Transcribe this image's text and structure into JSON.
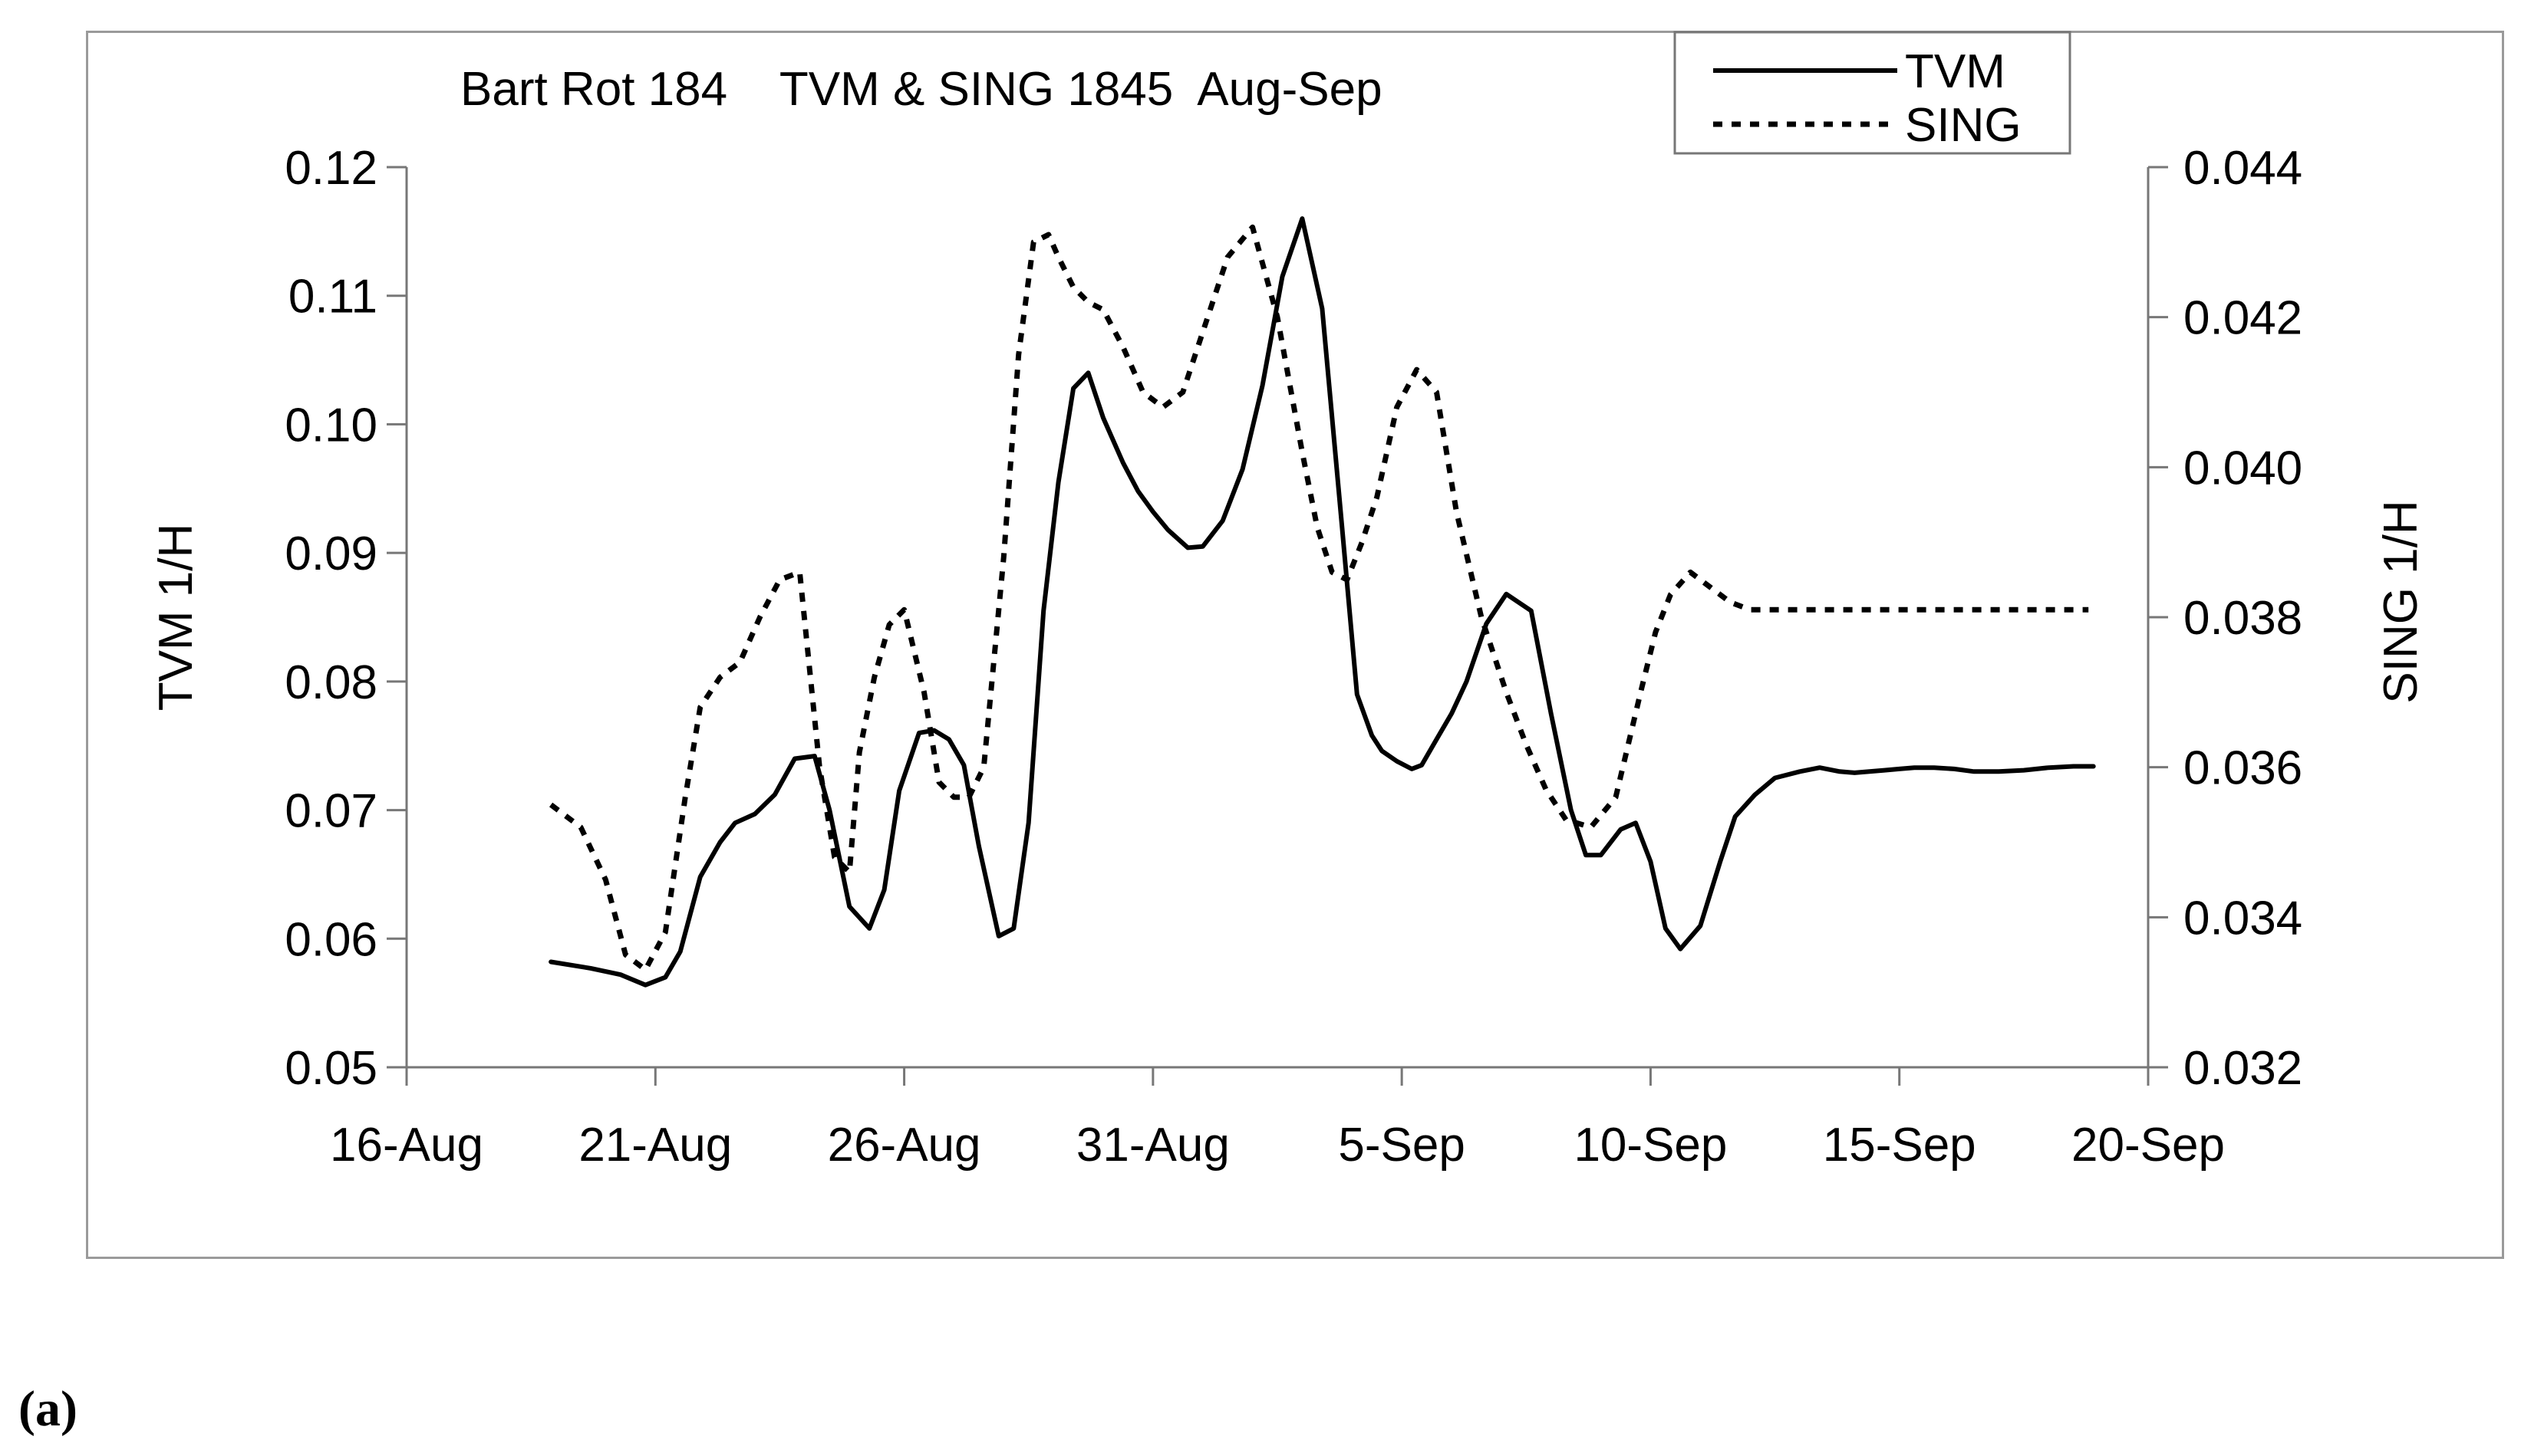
{
  "chart_data": {
    "type": "line",
    "title": "Bart Rot 184    TVM & SING 1845  Aug-Sep",
    "xlabel": "",
    "ylabel": "TVM  1/H",
    "y2label": "SING 1/H",
    "x_ticks": [
      "16-Aug",
      "21-Aug",
      "26-Aug",
      "31-Aug",
      "5-Sep",
      "10-Sep",
      "15-Sep",
      "20-Sep"
    ],
    "x_range_days": [
      0,
      35
    ],
    "x_unit": "days since 16-Aug",
    "ylim": [
      0.05,
      0.12
    ],
    "y_ticks": [
      "0.05",
      "0.06",
      "0.07",
      "0.08",
      "0.09",
      "0.10",
      "0.11",
      "0.12"
    ],
    "y2lim": [
      0.032,
      0.044
    ],
    "y2_ticks": [
      "0.032",
      "0.034",
      "0.036",
      "0.038",
      "0.040",
      "0.042",
      "0.044"
    ],
    "legend_position": "top-right",
    "grid": false,
    "series": [
      {
        "name": "TVM",
        "axis": "left",
        "style": "solid",
        "x": [
          2.9,
          3.7,
          4.3,
          4.8,
          5.2,
          5.5,
          5.9,
          6.3,
          6.6,
          7.0,
          7.4,
          7.8,
          8.2,
          8.5,
          8.9,
          9.3,
          9.6,
          9.9,
          10.3,
          10.6,
          10.9,
          11.2,
          11.5,
          11.9,
          12.2,
          12.5,
          12.8,
          13.1,
          13.4,
          13.7,
          14.0,
          14.4,
          14.7,
          15.0,
          15.3,
          15.7,
          16.0,
          16.4,
          16.8,
          17.2,
          17.6,
          18.0,
          18.4,
          18.8,
          19.1,
          19.4,
          19.6,
          19.9,
          20.2,
          20.4,
          20.7,
          21.0,
          21.3,
          21.7,
          22.1,
          22.6,
          23.0,
          23.4,
          23.7,
          24.0,
          24.4,
          24.7,
          25.0,
          25.3,
          25.6,
          26.0,
          26.4,
          26.7,
          27.1,
          27.5,
          28.0,
          28.4,
          28.8,
          29.1,
          29.4,
          29.7,
          30.0,
          30.3,
          30.7,
          31.1,
          31.5,
          32.0,
          32.5,
          33.0,
          33.5,
          33.9
        ],
        "y": [
          0.0582,
          0.0577,
          0.0572,
          0.0564,
          0.057,
          0.059,
          0.0648,
          0.0675,
          0.069,
          0.0697,
          0.0712,
          0.074,
          0.0742,
          0.07,
          0.0625,
          0.0608,
          0.0638,
          0.0715,
          0.076,
          0.0762,
          0.0755,
          0.0735,
          0.0672,
          0.0602,
          0.0608,
          0.069,
          0.0855,
          0.0955,
          0.1028,
          0.104,
          0.1005,
          0.097,
          0.0948,
          0.0932,
          0.0918,
          0.0904,
          0.0905,
          0.0925,
          0.0965,
          0.103,
          0.1115,
          0.116,
          0.109,
          0.092,
          0.079,
          0.0758,
          0.0746,
          0.0738,
          0.0732,
          0.0735,
          0.0755,
          0.0775,
          0.08,
          0.0845,
          0.0868,
          0.0855,
          0.0775,
          0.07,
          0.0665,
          0.0665,
          0.0685,
          0.069,
          0.066,
          0.0608,
          0.0592,
          0.061,
          0.066,
          0.0695,
          0.0712,
          0.0725,
          0.073,
          0.0733,
          0.073,
          0.0729,
          0.073,
          0.0731,
          0.0732,
          0.0733,
          0.0733,
          0.0732,
          0.073,
          0.073,
          0.0731,
          0.0733,
          0.0734,
          0.0734
        ]
      },
      {
        "name": "SING",
        "axis": "right",
        "style": "dotted",
        "x": [
          2.9,
          3.5,
          4.0,
          4.4,
          4.8,
          5.2,
          5.6,
          5.9,
          6.3,
          6.7,
          7.1,
          7.5,
          7.9,
          8.3,
          8.6,
          8.9,
          9.1,
          9.4,
          9.7,
          10.0,
          10.4,
          10.7,
          11.0,
          11.3,
          11.6,
          12.0,
          12.3,
          12.6,
          12.9,
          13.1,
          13.4,
          13.7,
          14.0,
          14.4,
          14.8,
          15.2,
          15.6,
          16.0,
          16.5,
          17.0,
          17.5,
          18.0,
          18.3,
          18.6,
          18.9,
          19.2,
          19.5,
          19.9,
          20.3,
          20.7,
          21.1,
          21.6,
          22.1,
          22.5,
          22.9,
          23.3,
          23.8,
          24.3,
          24.8,
          25.1,
          25.4,
          25.8,
          26.2,
          26.6,
          27.0,
          27.4,
          27.8,
          28.3,
          28.8,
          29.1,
          29.4,
          29.7,
          30.0,
          30.3,
          30.6,
          31.0,
          31.4,
          31.8,
          32.2,
          32.6,
          33.0,
          33.4,
          33.8
        ],
        "y": [
          0.0355,
          0.0352,
          0.0345,
          0.0335,
          0.0333,
          0.0338,
          0.0356,
          0.0368,
          0.0372,
          0.0374,
          0.038,
          0.0385,
          0.0386,
          0.036,
          0.0348,
          0.0346,
          0.0362,
          0.0372,
          0.0379,
          0.0381,
          0.037,
          0.0358,
          0.0356,
          0.0356,
          0.036,
          0.0388,
          0.0415,
          0.043,
          0.0431,
          0.0428,
          0.0424,
          0.0422,
          0.0421,
          0.0416,
          0.041,
          0.0408,
          0.041,
          0.0418,
          0.0428,
          0.0432,
          0.042,
          0.0402,
          0.0392,
          0.0386,
          0.0385,
          0.039,
          0.0396,
          0.0408,
          0.0413,
          0.041,
          0.0394,
          0.038,
          0.037,
          0.0363,
          0.0357,
          0.0353,
          0.0352,
          0.0356,
          0.037,
          0.0378,
          0.0383,
          0.0386,
          0.0384,
          0.0382,
          0.0381,
          0.0381,
          0.0381,
          0.0381,
          0.0381,
          0.0381,
          0.0381,
          0.0381,
          0.0381,
          0.0381,
          0.0381,
          0.0381,
          0.0381,
          0.0381,
          0.0381,
          0.0381,
          0.0381,
          0.0381,
          0.0381
        ]
      }
    ]
  },
  "panel_label": "(a)"
}
